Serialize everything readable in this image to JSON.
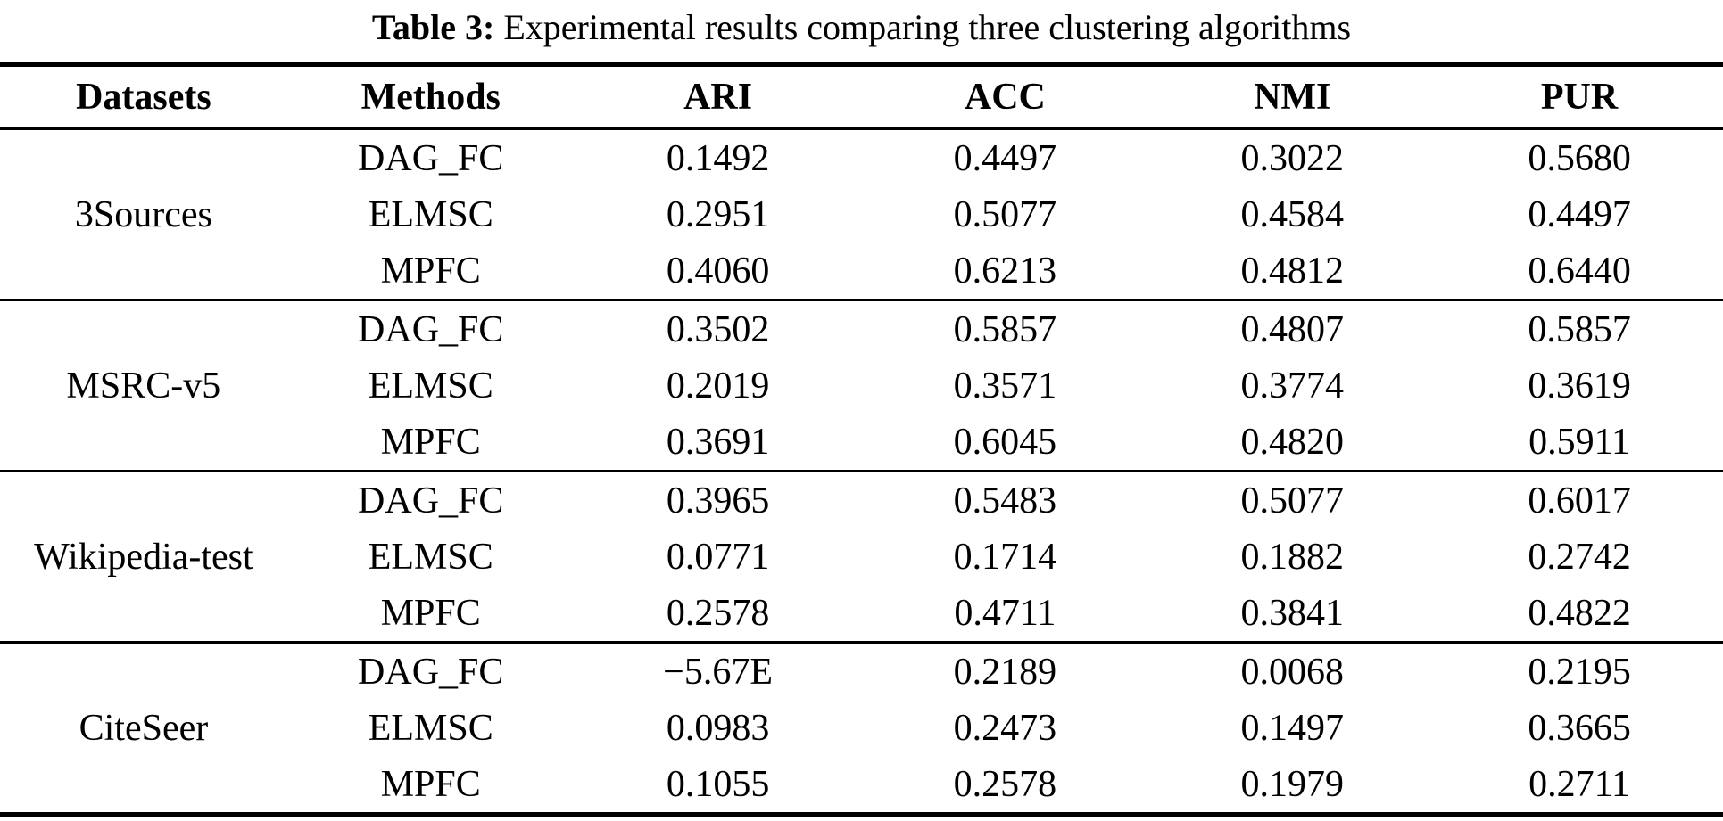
{
  "caption": {
    "label": "Table 3:",
    "text": "Experimental results comparing three clustering algorithms"
  },
  "table": {
    "columns": [
      "Datasets",
      "Methods",
      "ARI",
      "ACC",
      "NMI",
      "PUR"
    ],
    "groups": [
      {
        "dataset": "3Sources",
        "rows": [
          {
            "method": "DAG_FC",
            "values": [
              "0.1492",
              "0.4497",
              "0.3022",
              "0.5680"
            ],
            "bold": {
              "method": false,
              "values": [
                false,
                false,
                false,
                false
              ]
            }
          },
          {
            "method": "ELMSC",
            "values": [
              "0.2951",
              "0.5077",
              "0.4584",
              "0.4497"
            ],
            "bold": {
              "method": false,
              "values": [
                false,
                false,
                false,
                false
              ]
            }
          },
          {
            "method": "MPFC",
            "values": [
              "0.4060",
              "0.6213",
              "0.4812",
              "0.6440"
            ],
            "bold": {
              "method": true,
              "values": [
                true,
                true,
                true,
                true
              ]
            }
          }
        ]
      },
      {
        "dataset": "MSRC-v5",
        "rows": [
          {
            "method": "DAG_FC",
            "values": [
              "0.3502",
              "0.5857",
              "0.4807",
              "0.5857"
            ],
            "bold": {
              "method": false,
              "values": [
                false,
                false,
                false,
                false
              ]
            }
          },
          {
            "method": "ELMSC",
            "values": [
              "0.2019",
              "0.3571",
              "0.3774",
              "0.3619"
            ],
            "bold": {
              "method": false,
              "values": [
                false,
                false,
                false,
                false
              ]
            }
          },
          {
            "method": "MPFC",
            "values": [
              "0.3691",
              "0.6045",
              "0.4820",
              "0.5911"
            ],
            "bold": {
              "method": true,
              "values": [
                true,
                true,
                true,
                true
              ]
            }
          }
        ]
      },
      {
        "dataset": "Wikipedia-test",
        "rows": [
          {
            "method": "DAG_FC",
            "values": [
              "0.3965",
              "0.5483",
              "0.5077",
              "0.6017"
            ],
            "bold": {
              "method": false,
              "values": [
                true,
                true,
                true,
                true
              ]
            }
          },
          {
            "method": "ELMSC",
            "values": [
              "0.0771",
              "0.1714",
              "0.1882",
              "0.2742"
            ],
            "bold": {
              "method": false,
              "values": [
                false,
                false,
                false,
                false
              ]
            }
          },
          {
            "method": "MPFC",
            "values": [
              "0.2578",
              "0.4711",
              "0.3841",
              "0.4822"
            ],
            "bold": {
              "method": true,
              "values": [
                false,
                false,
                false,
                false
              ]
            }
          }
        ]
      },
      {
        "dataset": "CiteSeer",
        "rows": [
          {
            "method": "DAG_FC",
            "values": [
              "−5.67E",
              "0.2189",
              "0.0068",
              "0.2195"
            ],
            "bold": {
              "method": false,
              "values": [
                false,
                false,
                false,
                false
              ]
            }
          },
          {
            "method": "ELMSC",
            "values": [
              "0.0983",
              "0.2473",
              "0.1497",
              "0.3665"
            ],
            "bold": {
              "method": false,
              "values": [
                false,
                false,
                false,
                true
              ]
            }
          },
          {
            "method": "MPFC",
            "values": [
              "0.1055",
              "0.2578",
              "0.1979",
              "0.2711"
            ],
            "bold": {
              "method": true,
              "values": [
                true,
                true,
                true,
                false
              ]
            }
          }
        ]
      }
    ]
  }
}
